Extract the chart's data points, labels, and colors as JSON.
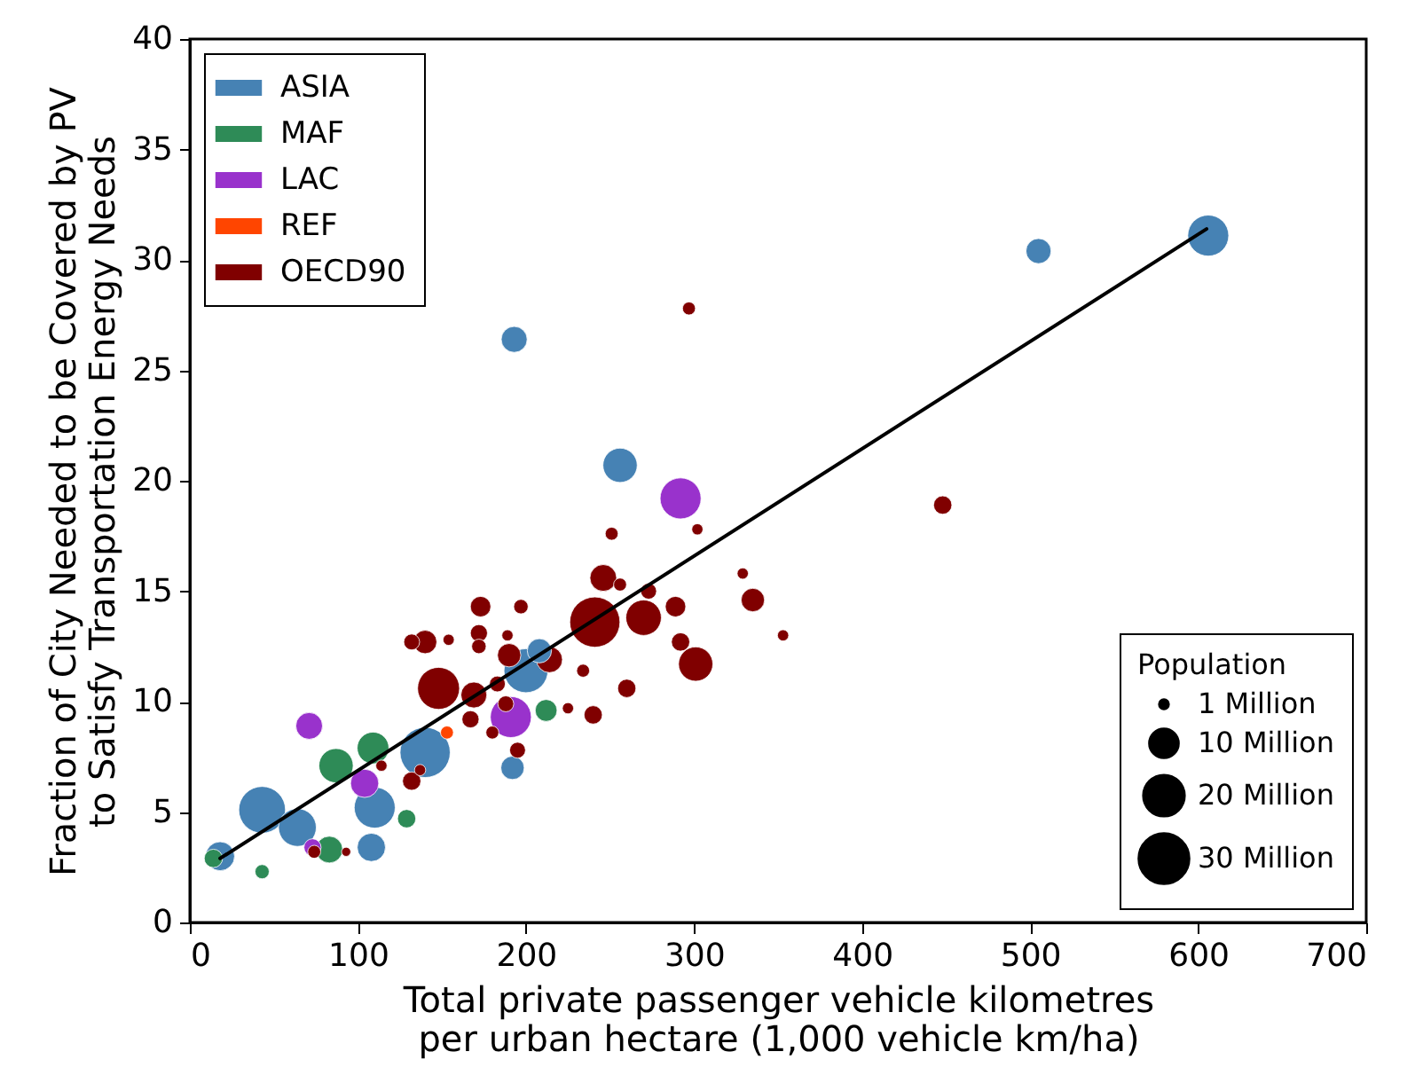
{
  "chart_data": {
    "type": "bubble",
    "xlabel": "Total private passenger vehicle kilometres\nper urban hectare (1,000 vehicle km/ha)",
    "ylabel": "Fraction of City Needed to be Covered by PV\nto Satisfy Transportation Energy Needs",
    "legend_title": "Population",
    "xlim": [
      0,
      700
    ],
    "xticks": [
      0,
      100,
      200,
      300,
      400,
      500,
      600,
      700
    ],
    "ylim": [
      0,
      40
    ],
    "yticks": [
      0,
      5,
      10,
      15,
      20,
      25,
      30,
      35,
      40
    ],
    "grid": false,
    "legend": "top left",
    "size_legend": [
      {
        "value": 1,
        "label": "1  Million"
      },
      {
        "value": 10,
        "label": "10 Million"
      },
      {
        "value": 20,
        "label": "20 Million"
      },
      {
        "value": 30,
        "label": "30 Million"
      }
    ],
    "series": [
      {
        "name": "ASIA",
        "marker": "circle",
        "color": "#4682b4",
        "x": [
          606,
          505,
          193,
          256,
          200,
          208,
          192,
          140,
          110,
          43,
          64,
          18,
          108
        ],
        "values": [
          31.1,
          30.4,
          26.4,
          20.7,
          11.4,
          12.3,
          7.0,
          7.7,
          5.2,
          5.1,
          4.3,
          3.0,
          3.4
        ],
        "sizes": [
          20,
          7.5,
          8,
          14,
          23,
          7,
          6.5,
          30,
          20,
          26,
          17,
          10,
          9.5
        ]
      },
      {
        "name": "MAF",
        "marker": "circle",
        "color": "#2e8b57",
        "x": [
          14,
          43,
          83,
          87,
          109,
          129,
          212
        ],
        "values": [
          2.9,
          2.3,
          3.3,
          7.1,
          7.9,
          4.7,
          9.6
        ],
        "sizes": [
          4,
          2.4,
          8.5,
          14,
          12,
          4,
          5.7
        ]
      },
      {
        "name": "LAC",
        "marker": "circle",
        "color": "#9932cc",
        "x": [
          71,
          104,
          73,
          191,
          292
        ],
        "values": [
          8.9,
          6.3,
          3.4,
          9.3,
          19.2
        ],
        "sizes": [
          8.5,
          9.5,
          3.5,
          20,
          20
        ]
      },
      {
        "name": "REF",
        "marker": "circle",
        "color": "#ff4500",
        "x": [
          153
        ],
        "values": [
          8.6
        ],
        "sizes": [
          2
        ]
      },
      {
        "name": "OECD90",
        "marker": "circle",
        "color": "#800000",
        "x": [
          297,
          251,
          302,
          246,
          256,
          273,
          289,
          329,
          335,
          353,
          241,
          270,
          292,
          301,
          260,
          234,
          225,
          240,
          173,
          197,
          172,
          154,
          140,
          132,
          189,
          172,
          190,
          214,
          148,
          169,
          183,
          167,
          132,
          137,
          195,
          180,
          93,
          114,
          188,
          448,
          74
        ],
        "values": [
          27.8,
          17.6,
          17.8,
          15.6,
          15.3,
          15.0,
          14.3,
          15.8,
          14.6,
          13.0,
          13.6,
          13.8,
          12.7,
          11.7,
          10.6,
          11.4,
          9.7,
          9.4,
          14.3,
          14.3,
          13.1,
          12.8,
          12.7,
          12.7,
          13.0,
          12.5,
          12.1,
          11.9,
          10.6,
          10.3,
          10.8,
          9.2,
          6.4,
          6.9,
          7.8,
          8.6,
          3.2,
          7.1,
          9.9,
          18.9,
          3.2
        ],
        "sizes": [
          2,
          2,
          1.5,
          8.5,
          2,
          3,
          5,
          1.5,
          6.5,
          1.5,
          30,
          15,
          4,
          14,
          4,
          2,
          1.5,
          4,
          5,
          2.5,
          3.5,
          1.5,
          6.5,
          3,
          1.5,
          2.5,
          6.5,
          8,
          21,
          8,
          3,
          3.5,
          4,
          1.5,
          3,
          2,
          1,
          1.5,
          3,
          4,
          2
        ]
      },
      {
        "type": "line",
        "marker": "none",
        "color": "#000000",
        "x": [
          18,
          605
        ],
        "values": [
          2.9,
          31.4
        ]
      }
    ]
  }
}
